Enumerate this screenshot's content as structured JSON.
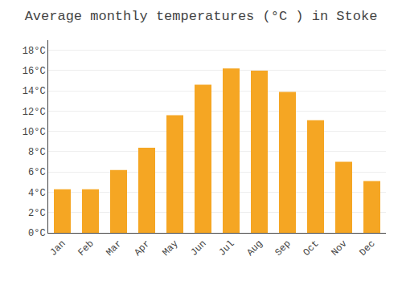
{
  "chart_data": {
    "type": "bar",
    "title": "Average monthly temperatures (°C ) in Stoke",
    "categories": [
      "Jan",
      "Feb",
      "Mar",
      "Apr",
      "May",
      "Jun",
      "Jul",
      "Aug",
      "Sep",
      "Oct",
      "Nov",
      "Dec"
    ],
    "values": [
      4.3,
      4.3,
      6.2,
      8.4,
      11.6,
      14.6,
      16.2,
      16.0,
      13.9,
      11.1,
      7.0,
      5.1
    ],
    "color": "#F5A623",
    "ylim": [
      0,
      19
    ],
    "yticks": [
      {
        "value": 0,
        "label": "0°C"
      },
      {
        "value": 2,
        "label": "2°C"
      },
      {
        "value": 4,
        "label": "4°C"
      },
      {
        "value": 6,
        "label": "6°C"
      },
      {
        "value": 8,
        "label": "8°C"
      },
      {
        "value": 10,
        "label": "10°C"
      },
      {
        "value": 12,
        "label": "12°C"
      },
      {
        "value": 14,
        "label": "14°C"
      },
      {
        "value": 16,
        "label": "16°C"
      },
      {
        "value": 18,
        "label": "18°C"
      }
    ],
    "grid": true
  }
}
